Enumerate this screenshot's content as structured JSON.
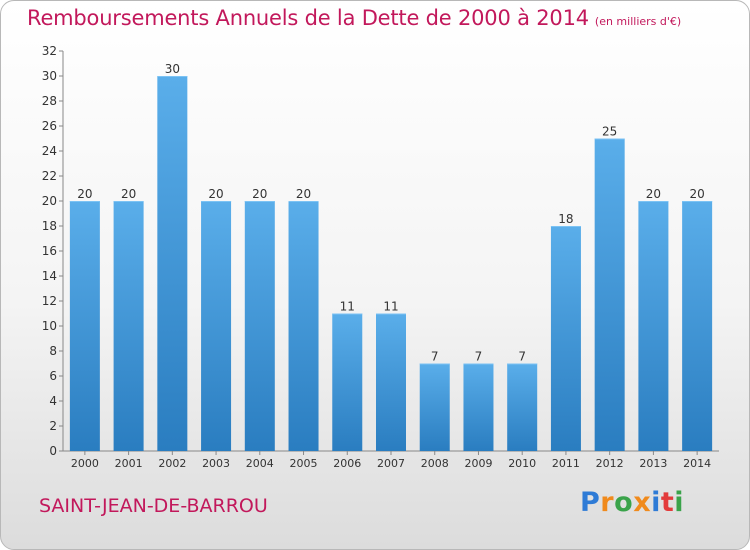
{
  "title": "Remboursements Annuels de la Dette de 2000 à 2014",
  "subtitle": "(en milliers d'€)",
  "commune": "SAINT-JEAN-DE-BARROU",
  "brand": {
    "letters": [
      {
        "char": "P",
        "color": "#2e7bd6"
      },
      {
        "char": "r",
        "color": "#f08a1c"
      },
      {
        "char": "o",
        "color": "#3aa34a"
      },
      {
        "char": "x",
        "color": "#f08a1c"
      },
      {
        "char": "i",
        "color": "#2e7bd6"
      },
      {
        "char": "t",
        "color": "#e33b3b"
      },
      {
        "char": "i",
        "color": "#3aa34a"
      }
    ]
  },
  "chart_data": {
    "type": "bar",
    "categories": [
      "2000",
      "2001",
      "2002",
      "2003",
      "2004",
      "2005",
      "2006",
      "2007",
      "2008",
      "2009",
      "2010",
      "2011",
      "2012",
      "2013",
      "2014"
    ],
    "values": [
      20,
      20,
      30,
      20,
      20,
      20,
      11,
      11,
      7,
      7,
      7,
      18,
      25,
      20,
      20
    ],
    "ylim": [
      0,
      32
    ],
    "yticks": [
      0,
      2,
      4,
      6,
      8,
      10,
      12,
      14,
      16,
      18,
      20,
      22,
      24,
      26,
      28,
      30,
      32
    ],
    "grid": false,
    "colors": {
      "bar_top": "#5aaeea",
      "bar_bottom": "#2a7dc0",
      "axis": "#888888",
      "label": "#333333"
    }
  }
}
